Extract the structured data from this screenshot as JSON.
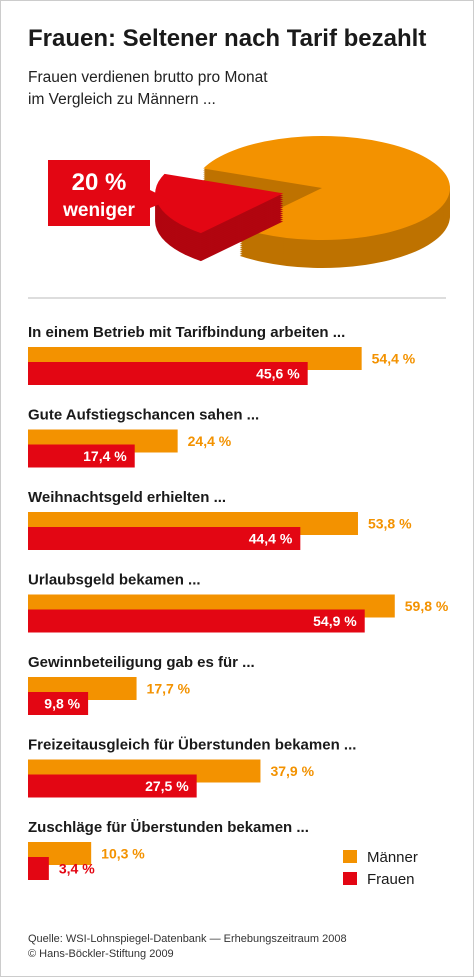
{
  "header": {
    "title": "Frauen: Seltener nach Tarif bezahlt",
    "subtitle": [
      "Frauen verdienen brutto pro Monat",
      "im Vergleich zu Männern ..."
    ]
  },
  "chart_data": [
    {
      "type": "pie",
      "values": [
        80,
        20
      ],
      "colors": [
        "#f39200",
        "#e30613"
      ],
      "exploded": 1,
      "annotation": [
        "20 %",
        "weniger"
      ]
    },
    {
      "type": "hbar",
      "categories": [
        "In einem Betrieb mit Tarifbindung arbeiten ...",
        "Gute Aufstiegschancen sahen ...",
        "Weihnachtsgeld erhielten ...",
        "Urlaubsgeld bekamen ...",
        "Gewinnbeteiligung gab es für ...",
        "Freizeitausgleich für Überstunden bekamen ...",
        "Zuschläge für Überstunden bekamen ..."
      ],
      "series": [
        {
          "name": "Männer",
          "color": "#f39200",
          "values": [
            54.4,
            24.4,
            53.8,
            59.8,
            17.7,
            37.9,
            10.3
          ],
          "value_labels": [
            "54,4 %",
            "24,4 %",
            "53,8 %",
            "59,8 %",
            "17,7 %",
            "37,9 %",
            "10,3 %"
          ]
        },
        {
          "name": "Frauen",
          "color": "#e30613",
          "values": [
            45.6,
            17.4,
            44.4,
            54.9,
            9.8,
            27.5,
            3.4
          ],
          "value_labels": [
            "45,6 %",
            "17,4 %",
            "44,4 %",
            "54,9 %",
            "9,8 %",
            "27,5 %",
            "3,4 %"
          ]
        }
      ],
      "xlim": [
        0,
        60
      ],
      "legend": "bottom-right"
    }
  ],
  "source": [
    "Quelle: WSI-Lohnspiegel-Datenbank — Erhebungszeitraum 2008",
    "© Hans-Böckler-Stiftung 2009"
  ]
}
